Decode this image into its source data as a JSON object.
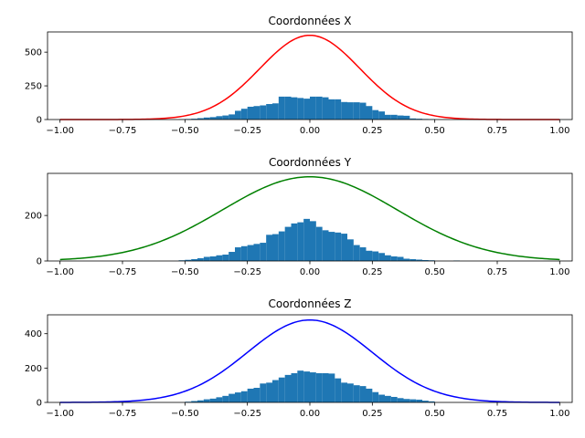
{
  "chart_data": [
    {
      "type": "histogram+line",
      "title": "Coordonnées X",
      "line_color": "#ff0000",
      "hist_color": "#1f77b4",
      "xlim": [
        -1.05,
        1.05
      ],
      "ylim": [
        0,
        650
      ],
      "xticks": [
        -1.0,
        -0.75,
        -0.5,
        -0.25,
        0.0,
        0.25,
        0.5,
        0.75,
        1.0
      ],
      "xtick_labels": [
        "−1.00",
        "−0.75",
        "−0.50",
        "−0.25",
        "0.00",
        "0.25",
        "0.50",
        "0.75",
        "1.00"
      ],
      "yticks": [
        0,
        250,
        500
      ],
      "ytick_labels": [
        "0",
        "250",
        "500"
      ],
      "curve": {
        "amplitude": 625,
        "mean": 0.0,
        "sigma": 0.2,
        "x_range": [
          -1.0,
          1.0
        ]
      },
      "bins": [
        {
          "x0": -0.525,
          "x1": -0.5,
          "count": 2
        },
        {
          "x0": -0.5,
          "x1": -0.475,
          "count": 4
        },
        {
          "x0": -0.475,
          "x1": -0.45,
          "count": 6
        },
        {
          "x0": -0.45,
          "x1": -0.425,
          "count": 10
        },
        {
          "x0": -0.425,
          "x1": -0.4,
          "count": 15
        },
        {
          "x0": -0.4,
          "x1": -0.375,
          "count": 18
        },
        {
          "x0": -0.375,
          "x1": -0.35,
          "count": 25
        },
        {
          "x0": -0.35,
          "x1": -0.325,
          "count": 30
        },
        {
          "x0": -0.325,
          "x1": -0.3,
          "count": 38
        },
        {
          "x0": -0.3,
          "x1": -0.275,
          "count": 65
        },
        {
          "x0": -0.275,
          "x1": -0.25,
          "count": 80
        },
        {
          "x0": -0.25,
          "x1": -0.225,
          "count": 95
        },
        {
          "x0": -0.225,
          "x1": -0.2,
          "count": 100
        },
        {
          "x0": -0.2,
          "x1": -0.175,
          "count": 105
        },
        {
          "x0": -0.175,
          "x1": -0.15,
          "count": 115
        },
        {
          "x0": -0.15,
          "x1": -0.125,
          "count": 120
        },
        {
          "x0": -0.125,
          "x1": -0.1,
          "count": 170
        },
        {
          "x0": -0.1,
          "x1": -0.075,
          "count": 170
        },
        {
          "x0": -0.075,
          "x1": -0.05,
          "count": 165
        },
        {
          "x0": -0.05,
          "x1": -0.025,
          "count": 160
        },
        {
          "x0": -0.025,
          "x1": 0.0,
          "count": 155
        },
        {
          "x0": 0.0,
          "x1": 0.025,
          "count": 170
        },
        {
          "x0": 0.025,
          "x1": 0.05,
          "count": 170
        },
        {
          "x0": 0.05,
          "x1": 0.075,
          "count": 165
        },
        {
          "x0": 0.075,
          "x1": 0.1,
          "count": 150
        },
        {
          "x0": 0.1,
          "x1": 0.125,
          "count": 150
        },
        {
          "x0": 0.125,
          "x1": 0.15,
          "count": 130
        },
        {
          "x0": 0.15,
          "x1": 0.175,
          "count": 128
        },
        {
          "x0": 0.175,
          "x1": 0.2,
          "count": 128
        },
        {
          "x0": 0.2,
          "x1": 0.225,
          "count": 125
        },
        {
          "x0": 0.225,
          "x1": 0.25,
          "count": 100
        },
        {
          "x0": 0.25,
          "x1": 0.275,
          "count": 70
        },
        {
          "x0": 0.275,
          "x1": 0.3,
          "count": 60
        },
        {
          "x0": 0.3,
          "x1": 0.325,
          "count": 35
        },
        {
          "x0": 0.325,
          "x1": 0.35,
          "count": 35
        },
        {
          "x0": 0.35,
          "x1": 0.375,
          "count": 30
        },
        {
          "x0": 0.375,
          "x1": 0.4,
          "count": 28
        },
        {
          "x0": 0.4,
          "x1": 0.425,
          "count": 8
        },
        {
          "x0": 0.425,
          "x1": 0.45,
          "count": 6
        },
        {
          "x0": 0.45,
          "x1": 0.475,
          "count": 4
        },
        {
          "x0": 0.475,
          "x1": 0.5,
          "count": 3
        }
      ]
    },
    {
      "type": "histogram+line",
      "title": "Coordonnées Y",
      "line_color": "#008000",
      "hist_color": "#1f77b4",
      "xlim": [
        -1.05,
        1.05
      ],
      "ylim": [
        0,
        385
      ],
      "xticks": [
        -1.0,
        -0.75,
        -0.5,
        -0.25,
        0.0,
        0.25,
        0.5,
        0.75,
        1.0
      ],
      "xtick_labels": [
        "−1.00",
        "−0.75",
        "−0.50",
        "−0.25",
        "0.00",
        "0.25",
        "0.50",
        "0.75",
        "1.00"
      ],
      "yticks": [
        0,
        200
      ],
      "ytick_labels": [
        "0",
        "200"
      ],
      "curve": {
        "amplitude": 370,
        "mean": 0.0,
        "sigma": 0.35,
        "x_range": [
          -1.0,
          1.0
        ]
      },
      "bins": [
        {
          "x0": -0.525,
          "x1": -0.5,
          "count": 3
        },
        {
          "x0": -0.5,
          "x1": -0.475,
          "count": 5
        },
        {
          "x0": -0.475,
          "x1": -0.45,
          "count": 8
        },
        {
          "x0": -0.45,
          "x1": -0.425,
          "count": 12
        },
        {
          "x0": -0.425,
          "x1": -0.4,
          "count": 18
        },
        {
          "x0": -0.4,
          "x1": -0.375,
          "count": 20
        },
        {
          "x0": -0.375,
          "x1": -0.35,
          "count": 25
        },
        {
          "x0": -0.35,
          "x1": -0.325,
          "count": 28
        },
        {
          "x0": -0.325,
          "x1": -0.3,
          "count": 40
        },
        {
          "x0": -0.3,
          "x1": -0.275,
          "count": 60
        },
        {
          "x0": -0.275,
          "x1": -0.25,
          "count": 65
        },
        {
          "x0": -0.25,
          "x1": -0.225,
          "count": 70
        },
        {
          "x0": -0.225,
          "x1": -0.2,
          "count": 75
        },
        {
          "x0": -0.2,
          "x1": -0.175,
          "count": 80
        },
        {
          "x0": -0.175,
          "x1": -0.15,
          "count": 115
        },
        {
          "x0": -0.15,
          "x1": -0.125,
          "count": 118
        },
        {
          "x0": -0.125,
          "x1": -0.1,
          "count": 130
        },
        {
          "x0": -0.1,
          "x1": -0.075,
          "count": 150
        },
        {
          "x0": -0.075,
          "x1": -0.05,
          "count": 165
        },
        {
          "x0": -0.05,
          "x1": -0.025,
          "count": 170
        },
        {
          "x0": -0.025,
          "x1": 0.0,
          "count": 185
        },
        {
          "x0": 0.0,
          "x1": 0.025,
          "count": 175
        },
        {
          "x0": 0.025,
          "x1": 0.05,
          "count": 150
        },
        {
          "x0": 0.05,
          "x1": 0.075,
          "count": 135
        },
        {
          "x0": 0.075,
          "x1": 0.1,
          "count": 128
        },
        {
          "x0": 0.1,
          "x1": 0.125,
          "count": 125
        },
        {
          "x0": 0.125,
          "x1": 0.15,
          "count": 120
        },
        {
          "x0": 0.15,
          "x1": 0.175,
          "count": 95
        },
        {
          "x0": 0.175,
          "x1": 0.2,
          "count": 70
        },
        {
          "x0": 0.2,
          "x1": 0.225,
          "count": 60
        },
        {
          "x0": 0.225,
          "x1": 0.25,
          "count": 45
        },
        {
          "x0": 0.25,
          "x1": 0.275,
          "count": 42
        },
        {
          "x0": 0.275,
          "x1": 0.3,
          "count": 35
        },
        {
          "x0": 0.3,
          "x1": 0.325,
          "count": 25
        },
        {
          "x0": 0.325,
          "x1": 0.35,
          "count": 20
        },
        {
          "x0": 0.35,
          "x1": 0.375,
          "count": 18
        },
        {
          "x0": 0.375,
          "x1": 0.4,
          "count": 10
        },
        {
          "x0": 0.4,
          "x1": 0.425,
          "count": 8
        },
        {
          "x0": 0.425,
          "x1": 0.45,
          "count": 6
        },
        {
          "x0": 0.45,
          "x1": 0.475,
          "count": 4
        },
        {
          "x0": 0.475,
          "x1": 0.5,
          "count": 3
        },
        {
          "x0": 0.575,
          "x1": 0.6,
          "count": 2
        }
      ]
    },
    {
      "type": "histogram+line",
      "title": "Coordonnées Z",
      "line_color": "#0000ff",
      "hist_color": "#1f77b4",
      "xlim": [
        -1.05,
        1.05
      ],
      "ylim": [
        0,
        510
      ],
      "xticks": [
        -1.0,
        -0.75,
        -0.5,
        -0.25,
        0.0,
        0.25,
        0.5,
        0.75,
        1.0
      ],
      "xtick_labels": [
        "−1.00",
        "−0.75",
        "−0.50",
        "−0.25",
        "0.00",
        "0.25",
        "0.50",
        "0.75",
        "1.00"
      ],
      "yticks": [
        0,
        200,
        400
      ],
      "ytick_labels": [
        "0",
        "200",
        "400"
      ],
      "curve": {
        "amplitude": 480,
        "mean": 0.0,
        "sigma": 0.25,
        "x_range": [
          -1.0,
          1.0
        ]
      },
      "bins": [
        {
          "x0": -0.5,
          "x1": -0.475,
          "count": 4
        },
        {
          "x0": -0.475,
          "x1": -0.45,
          "count": 8
        },
        {
          "x0": -0.45,
          "x1": -0.425,
          "count": 12
        },
        {
          "x0": -0.425,
          "x1": -0.4,
          "count": 18
        },
        {
          "x0": -0.4,
          "x1": -0.375,
          "count": 22
        },
        {
          "x0": -0.375,
          "x1": -0.35,
          "count": 30
        },
        {
          "x0": -0.35,
          "x1": -0.325,
          "count": 38
        },
        {
          "x0": -0.325,
          "x1": -0.3,
          "count": 50
        },
        {
          "x0": -0.3,
          "x1": -0.275,
          "count": 58
        },
        {
          "x0": -0.275,
          "x1": -0.25,
          "count": 65
        },
        {
          "x0": -0.25,
          "x1": -0.225,
          "count": 80
        },
        {
          "x0": -0.225,
          "x1": -0.2,
          "count": 85
        },
        {
          "x0": -0.2,
          "x1": -0.175,
          "count": 110
        },
        {
          "x0": -0.175,
          "x1": -0.15,
          "count": 115
        },
        {
          "x0": -0.15,
          "x1": -0.125,
          "count": 130
        },
        {
          "x0": -0.125,
          "x1": -0.1,
          "count": 145
        },
        {
          "x0": -0.1,
          "x1": -0.075,
          "count": 160
        },
        {
          "x0": -0.075,
          "x1": -0.05,
          "count": 170
        },
        {
          "x0": -0.05,
          "x1": -0.025,
          "count": 185
        },
        {
          "x0": -0.025,
          "x1": 0.0,
          "count": 180
        },
        {
          "x0": 0.0,
          "x1": 0.025,
          "count": 175
        },
        {
          "x0": 0.025,
          "x1": 0.05,
          "count": 170
        },
        {
          "x0": 0.05,
          "x1": 0.075,
          "count": 170
        },
        {
          "x0": 0.075,
          "x1": 0.1,
          "count": 168
        },
        {
          "x0": 0.1,
          "x1": 0.125,
          "count": 140
        },
        {
          "x0": 0.125,
          "x1": 0.15,
          "count": 115
        },
        {
          "x0": 0.15,
          "x1": 0.175,
          "count": 110
        },
        {
          "x0": 0.175,
          "x1": 0.2,
          "count": 100
        },
        {
          "x0": 0.2,
          "x1": 0.225,
          "count": 95
        },
        {
          "x0": 0.225,
          "x1": 0.25,
          "count": 80
        },
        {
          "x0": 0.25,
          "x1": 0.275,
          "count": 60
        },
        {
          "x0": 0.275,
          "x1": 0.3,
          "count": 45
        },
        {
          "x0": 0.3,
          "x1": 0.325,
          "count": 38
        },
        {
          "x0": 0.325,
          "x1": 0.35,
          "count": 32
        },
        {
          "x0": 0.35,
          "x1": 0.375,
          "count": 25
        },
        {
          "x0": 0.375,
          "x1": 0.4,
          "count": 20
        },
        {
          "x0": 0.4,
          "x1": 0.425,
          "count": 18
        },
        {
          "x0": 0.425,
          "x1": 0.45,
          "count": 16
        },
        {
          "x0": 0.45,
          "x1": 0.475,
          "count": 10
        },
        {
          "x0": 0.475,
          "x1": 0.5,
          "count": 6
        }
      ]
    }
  ]
}
